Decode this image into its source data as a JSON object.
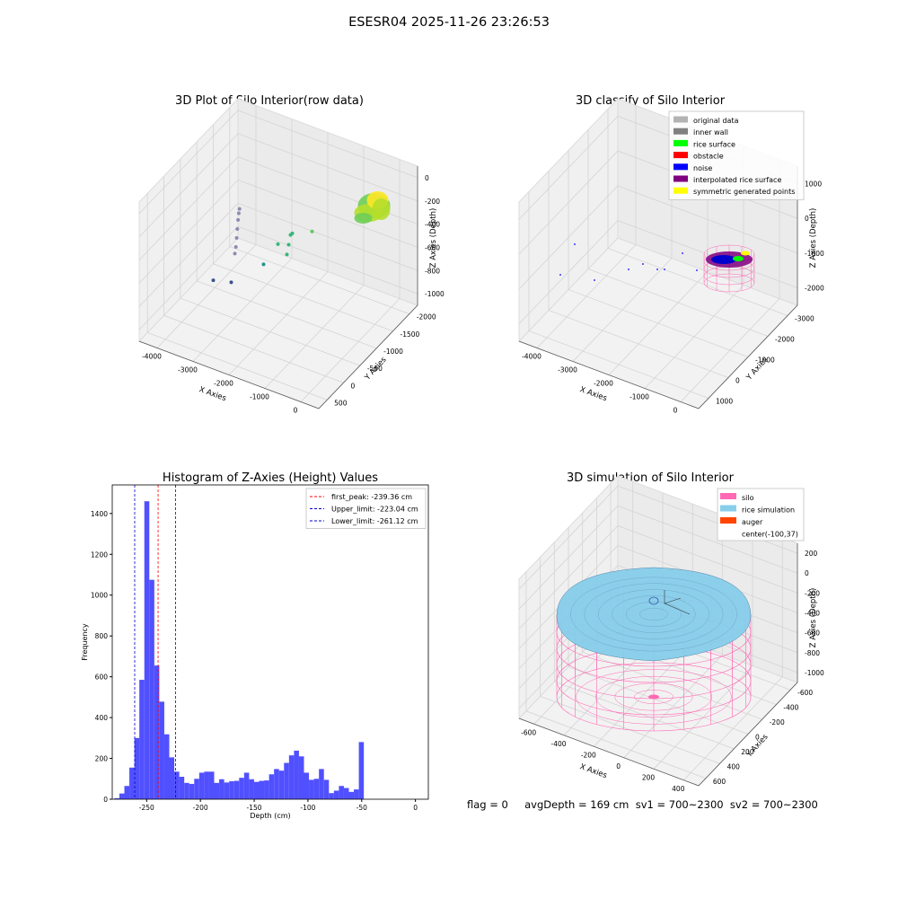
{
  "figure_title": "ESESR04 2025-11-26 23:26:53",
  "footer_text": "flag = 0     avgDepth = 169 cm  sv1 = 700~2300  sv2 = 700~2300",
  "chart_data": [
    {
      "type": "scatter",
      "title": "3D Plot of Silo Interior(row data)",
      "xlabel": "X Axies",
      "ylabel": "Y Axies",
      "zlabel": "Z Axies (Depth)",
      "xticks": [
        "-4000",
        "-3000",
        "-2000",
        "-1000",
        "0"
      ],
      "yticks": [
        "500",
        "0",
        "-500",
        "-1000",
        "-1500",
        "-2000"
      ],
      "zticks": [
        "0",
        "-200",
        "-400",
        "-600",
        "-800",
        "-1000"
      ],
      "grid": true,
      "points": [
        {
          "x": -3950,
          "y": 300,
          "z": -1000,
          "color": "#3b528b"
        },
        {
          "x": -3450,
          "y": 300,
          "z": -960,
          "color": "#3b528b"
        },
        {
          "x": -3350,
          "y": 300,
          "z": -700,
          "color": "#8c8cb0"
        },
        {
          "x": -3320,
          "y": 300,
          "z": -640,
          "color": "#8c8cb0"
        },
        {
          "x": -3300,
          "y": 300,
          "z": -560,
          "color": "#8c8cb0"
        },
        {
          "x": -3280,
          "y": 300,
          "z": -480,
          "color": "#8c8cb0"
        },
        {
          "x": -3260,
          "y": 300,
          "z": -400,
          "color": "#8c8cb0"
        },
        {
          "x": -3240,
          "y": 300,
          "z": -340,
          "color": "#8c8cb0"
        },
        {
          "x": -3220,
          "y": 300,
          "z": -300,
          "color": "#8c8cb0"
        },
        {
          "x": -2550,
          "y": 300,
          "z": -700,
          "color": "#21918c"
        },
        {
          "x": -2150,
          "y": 300,
          "z": -480,
          "color": "#35b779"
        },
        {
          "x": -1900,
          "y": 300,
          "z": -540,
          "color": "#35b779"
        },
        {
          "x": -1850,
          "y": 300,
          "z": -450,
          "color": "#35b779"
        },
        {
          "x": -1800,
          "y": 300,
          "z": -360,
          "color": "#35b779"
        },
        {
          "x": -1750,
          "y": 300,
          "z": -340,
          "color": "#35b779"
        },
        {
          "x": -1200,
          "y": 300,
          "z": -260,
          "color": "#5ec962"
        }
      ],
      "cluster": {
        "x": -300,
        "y": -600,
        "z": -200,
        "colors": [
          "#fde725",
          "#b5de2b",
          "#6ece58"
        ]
      }
    },
    {
      "type": "scatter",
      "title": "3D classify of Silo Interior",
      "xlabel": "X Axies",
      "ylabel": "Y Axies",
      "zlabel": "Z Axies (Depth)",
      "xticks": [
        "-4000",
        "-3000",
        "-2000",
        "-1000",
        "0"
      ],
      "yticks": [
        "1000",
        "0",
        "-1000",
        "-2000",
        "-3000"
      ],
      "zticks": [
        "1000",
        "0",
        "-1000",
        "-2000"
      ],
      "grid": true,
      "legend": {
        "placement": "top-right",
        "entries": [
          {
            "label": "original data",
            "color": "#b3b3b3"
          },
          {
            "label": "inner wall",
            "color": "#808080"
          },
          {
            "label": "rice surface",
            "color": "#00ff00"
          },
          {
            "label": "obstacle",
            "color": "#ff0000"
          },
          {
            "label": "noise",
            "color": "#0000ff"
          },
          {
            "label": "interpolated rice surface",
            "color": "#800080"
          },
          {
            "label": "symmetric generated points",
            "color": "#ffff00"
          }
        ]
      }
    },
    {
      "type": "bar",
      "title": "Histogram of Z-Axies (Height) Values",
      "xlabel": "Depth (cm)",
      "ylabel": "Frequency",
      "xlim": [
        -282,
        12
      ],
      "ylim": [
        0,
        1540
      ],
      "xticks": [
        -250,
        -200,
        -150,
        -100,
        -50,
        0
      ],
      "yticks": [
        0,
        200,
        400,
        600,
        800,
        1000,
        1200,
        1400
      ],
      "bin_start": -280,
      "bin_width": 4.64,
      "values": [
        5,
        28,
        65,
        155,
        300,
        585,
        1460,
        1075,
        655,
        478,
        318,
        205,
        135,
        110,
        80,
        75,
        100,
        130,
        135,
        135,
        80,
        98,
        82,
        88,
        90,
        105,
        130,
        98,
        85,
        90,
        92,
        122,
        148,
        140,
        178,
        215,
        238,
        210,
        130,
        95,
        100,
        148,
        95,
        30,
        42,
        65,
        55,
        36,
        48,
        280
      ],
      "bar_color": "#5050ff",
      "vlines": [
        {
          "label": "first_peak: -239.36 cm",
          "x": -239.36,
          "color": "#ff0000"
        },
        {
          "label": "Upper_limit: -223.04 cm",
          "x": -223.04,
          "color": "#0000cc"
        },
        {
          "label": "Lower_limit: -261.12 cm",
          "x": -261.12,
          "color": "#0000cc"
        }
      ],
      "legend_placement": "top-right"
    },
    {
      "type": "surface",
      "title": "3D simulation of Silo Interior",
      "xlabel": "X Axies",
      "ylabel": "Y Axies",
      "zlabel": "Z Axies (Depth)",
      "xticks": [
        "-600",
        "-400",
        "-200",
        "0",
        "200",
        "400"
      ],
      "yticks": [
        "600",
        "400",
        "200",
        "0",
        "-200",
        "-400",
        "-600"
      ],
      "zticks": [
        "200",
        "0",
        "-200",
        "-400",
        "-600",
        "-800",
        "-1000"
      ],
      "grid": true,
      "legend": {
        "placement": "top-right",
        "entries": [
          {
            "label": "silo",
            "color": "#ff69b4"
          },
          {
            "label": "rice simulation",
            "color": "#87ceeb"
          },
          {
            "label": "auger",
            "color": "#ff4500"
          },
          {
            "label": "center(-100,37)",
            "color": ""
          }
        ]
      }
    }
  ]
}
